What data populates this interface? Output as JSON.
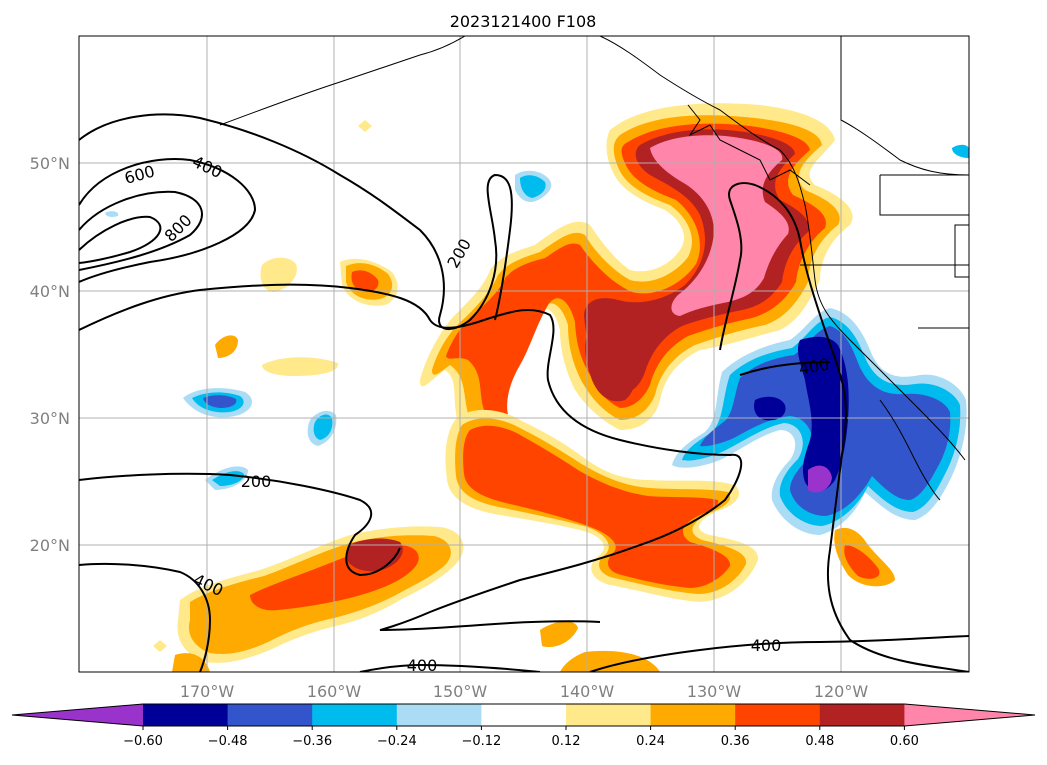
{
  "title": "2023121400 F108",
  "map": {
    "lon_labels": [
      "170°W",
      "160°W",
      "150°W",
      "140°W",
      "130°W",
      "120°W"
    ],
    "lat_labels": [
      "50°N",
      "40°N",
      "30°N",
      "20°N"
    ],
    "lon_range": [
      -180,
      -110
    ],
    "lat_range": [
      10,
      60
    ],
    "gridlines": true
  },
  "contours": {
    "color": "#000000",
    "labels": [
      "400",
      "600",
      "800",
      "200",
      "400",
      "200",
      "400",
      "400",
      "400"
    ]
  },
  "colorbar": {
    "ticks": [
      "−0.60",
      "−0.48",
      "−0.36",
      "−0.24",
      "−0.12",
      "0.12",
      "0.24",
      "0.36",
      "0.48",
      "0.60"
    ],
    "colors": [
      "#9933cc",
      "#000099",
      "#3355cc",
      "#00bbee",
      "#aaddf5",
      "#ffffff",
      "#ffe98a",
      "#ffaa00",
      "#ff4400",
      "#b22222",
      "#ff85aa"
    ],
    "extend": "both"
  }
}
